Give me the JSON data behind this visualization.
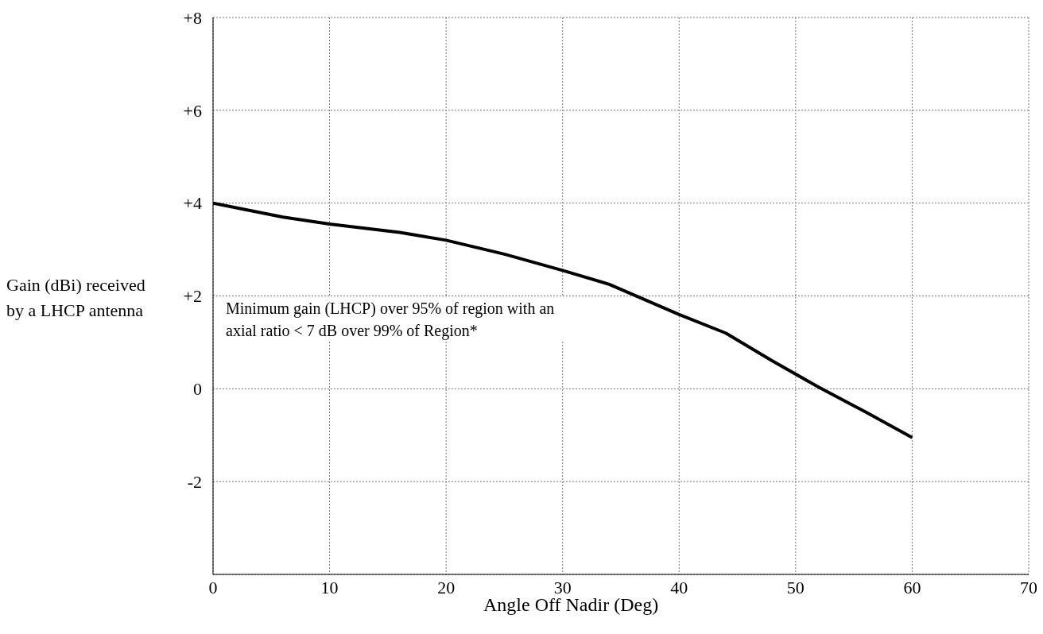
{
  "chart_data": {
    "type": "line",
    "xlabel": "Angle Off Nadir (Deg)",
    "ylabel": "Gain (dBi) received by a LHCP antenna",
    "annotations": [
      "Minimum gain (LHCP) over 95% of region with an axial ratio < 7 dB over 99% of Region*"
    ],
    "x": [
      0,
      6,
      10,
      16,
      20,
      25,
      30,
      34,
      40,
      44,
      48,
      52,
      56,
      60
    ],
    "series": [
      {
        "color": "#000000",
        "values": [
          4.0,
          3.7,
          3.55,
          3.37,
          3.2,
          2.9,
          2.55,
          2.25,
          1.6,
          1.2,
          0.6,
          0.03,
          -0.5,
          -1.05
        ]
      }
    ],
    "xlim": [
      0,
      70
    ],
    "xticks": [
      0,
      10,
      20,
      30,
      40,
      50,
      60,
      70
    ],
    "ylim": [
      -4,
      8
    ],
    "yticks": [
      {
        "value": -2,
        "label": "-2"
      },
      {
        "value": 0,
        "label": "0"
      },
      {
        "value": 2,
        "label": "+2"
      },
      {
        "value": 4,
        "label": "+4"
      },
      {
        "value": 6,
        "label": "+6"
      },
      {
        "value": 8,
        "label": "+8"
      }
    ],
    "grid": true,
    "marker": "none",
    "line_style": "solid"
  }
}
